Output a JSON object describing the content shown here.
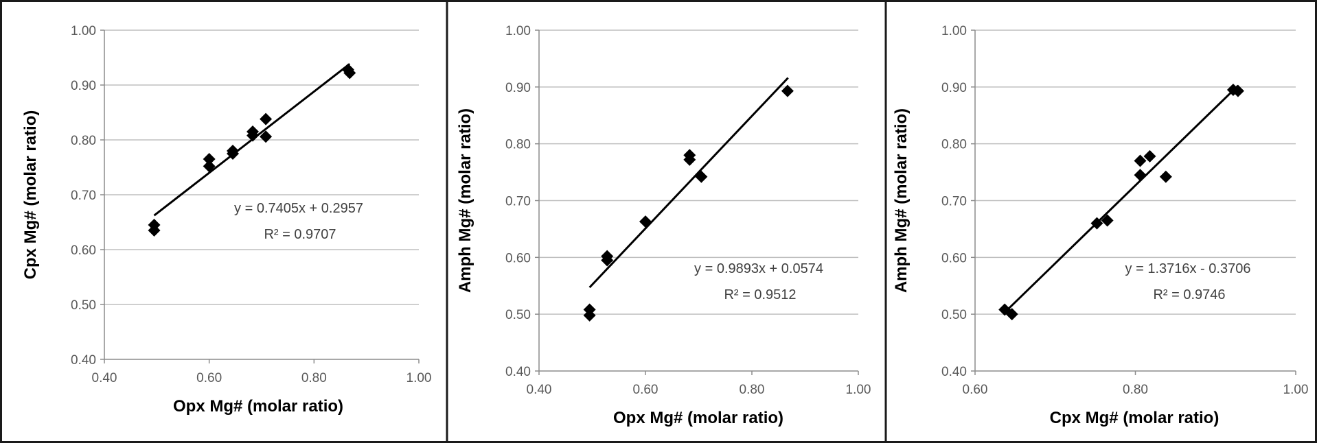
{
  "chart_data": [
    {
      "type": "scatter",
      "xlabel": "Opx Mg# (molar ratio)",
      "ylabel": "Cpx Mg# (molar ratio)",
      "xlim": [
        0.4,
        1.0
      ],
      "ylim": [
        0.4,
        1.0
      ],
      "xticks": [
        "0.40",
        "0.60",
        "0.80",
        "1.00"
      ],
      "yticks": [
        "0.40",
        "0.50",
        "0.60",
        "0.70",
        "0.80",
        "0.90",
        "1.00"
      ],
      "grid": "horizontal",
      "points": [
        {
          "x": 0.495,
          "y": 0.645
        },
        {
          "x": 0.495,
          "y": 0.635
        },
        {
          "x": 0.6,
          "y": 0.765
        },
        {
          "x": 0.6,
          "y": 0.752
        },
        {
          "x": 0.645,
          "y": 0.78
        },
        {
          "x": 0.645,
          "y": 0.775
        },
        {
          "x": 0.683,
          "y": 0.815
        },
        {
          "x": 0.683,
          "y": 0.808
        },
        {
          "x": 0.708,
          "y": 0.838
        },
        {
          "x": 0.708,
          "y": 0.806
        },
        {
          "x": 0.865,
          "y": 0.928
        },
        {
          "x": 0.868,
          "y": 0.922
        }
      ],
      "trendline": {
        "slope": 0.7405,
        "intercept": 0.2957,
        "x_range": [
          0.495,
          0.868
        ]
      },
      "equation": "y = 0.7405x + 0.2957",
      "r2_label": "R² = 0.9707"
    },
    {
      "type": "scatter",
      "xlabel": "Opx Mg# (molar ratio)",
      "ylabel": "Amph Mg# (molar ratio)",
      "xlim": [
        0.4,
        1.0
      ],
      "ylim": [
        0.4,
        1.0
      ],
      "xticks": [
        "0.40",
        "0.60",
        "0.80",
        "1.00"
      ],
      "yticks": [
        "0.40",
        "0.50",
        "0.60",
        "0.70",
        "0.80",
        "0.90",
        "1.00"
      ],
      "grid": "horizontal",
      "points": [
        {
          "x": 0.495,
          "y": 0.508
        },
        {
          "x": 0.495,
          "y": 0.498
        },
        {
          "x": 0.528,
          "y": 0.602
        },
        {
          "x": 0.528,
          "y": 0.595
        },
        {
          "x": 0.6,
          "y": 0.663
        },
        {
          "x": 0.683,
          "y": 0.78
        },
        {
          "x": 0.683,
          "y": 0.772
        },
        {
          "x": 0.705,
          "y": 0.742
        },
        {
          "x": 0.867,
          "y": 0.893
        }
      ],
      "trendline": {
        "slope": 0.9893,
        "intercept": 0.0574,
        "x_range": [
          0.495,
          0.868
        ]
      },
      "equation": "y = 0.9893x + 0.0574",
      "r2_label": "R² = 0.9512"
    },
    {
      "type": "scatter",
      "xlabel": "Cpx Mg# (molar ratio)",
      "ylabel": "Amph Mg# (molar ratio)",
      "xlim": [
        0.6,
        1.0
      ],
      "ylim": [
        0.4,
        1.0
      ],
      "xticks": [
        "0.60",
        "0.80",
        "1.00"
      ],
      "yticks": [
        "0.40",
        "0.50",
        "0.60",
        "0.70",
        "0.80",
        "0.90",
        "1.00"
      ],
      "grid": "horizontal",
      "points": [
        {
          "x": 0.637,
          "y": 0.508
        },
        {
          "x": 0.646,
          "y": 0.5
        },
        {
          "x": 0.752,
          "y": 0.66
        },
        {
          "x": 0.765,
          "y": 0.665
        },
        {
          "x": 0.806,
          "y": 0.77
        },
        {
          "x": 0.806,
          "y": 0.745
        },
        {
          "x": 0.818,
          "y": 0.778
        },
        {
          "x": 0.838,
          "y": 0.742
        },
        {
          "x": 0.922,
          "y": 0.895
        },
        {
          "x": 0.928,
          "y": 0.893
        }
      ],
      "trendline": {
        "slope": 1.3716,
        "intercept": -0.3706,
        "x_range": [
          0.637,
          0.928
        ]
      },
      "equation": "y = 1.3716x - 0.3706",
      "r2_label": "R² = 0.9746"
    }
  ]
}
